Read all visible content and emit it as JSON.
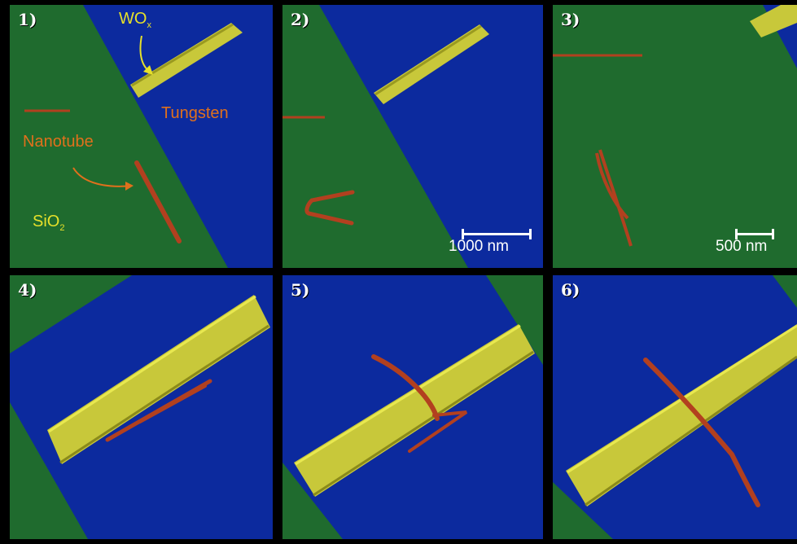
{
  "panels": [
    {
      "number": "1)"
    },
    {
      "number": "2)",
      "scale_bar": "1000 nm"
    },
    {
      "number": "3)",
      "scale_bar": "500 nm"
    },
    {
      "number": "4)"
    },
    {
      "number": "5)"
    },
    {
      "number": "6)"
    }
  ],
  "labels": {
    "oxide_main": "WO",
    "oxide_sub": "x",
    "metal": "Tungsten",
    "tube": "Nanotube",
    "substrate_main": "SiO",
    "substrate_sub": "2"
  },
  "colors": {
    "substrate": "#1f6b2e",
    "electrode": "#0c2a9e",
    "oxide": "#c8c83a",
    "tube": "#b2401f",
    "label_orange": "#e0701c",
    "label_yellow": "#e6e02a"
  }
}
